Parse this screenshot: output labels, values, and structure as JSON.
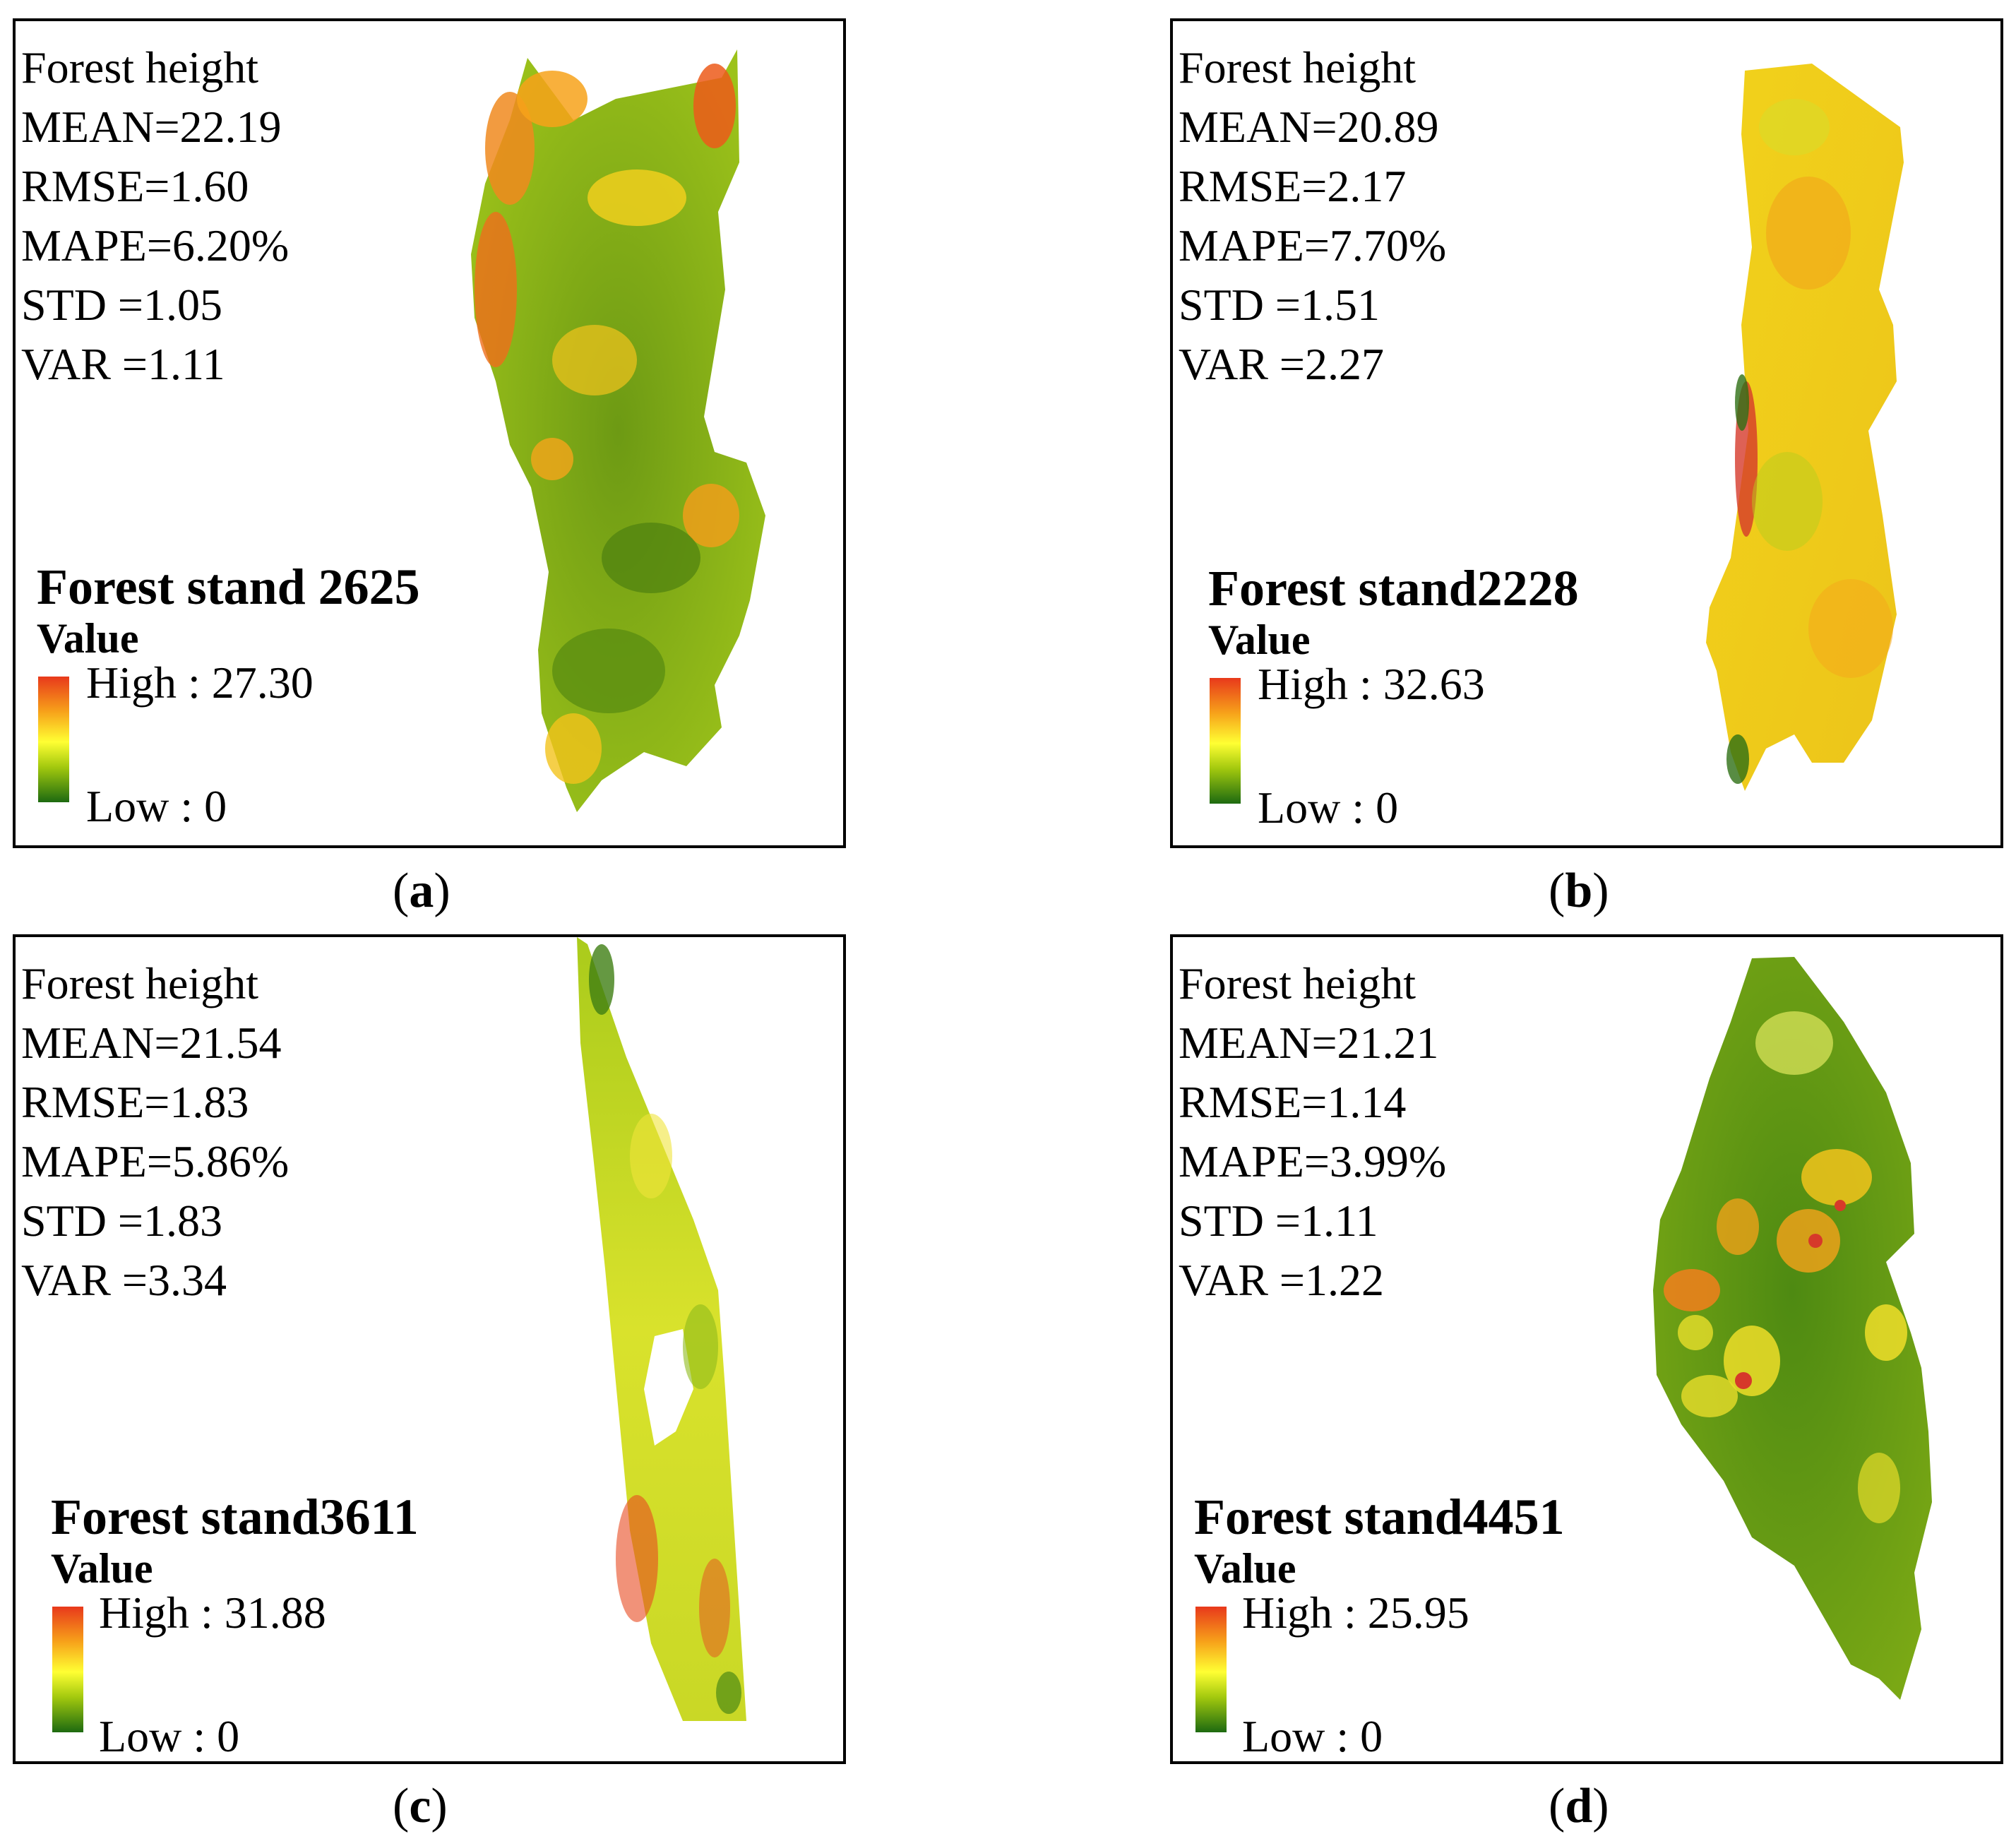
{
  "figure": {
    "panels": [
      {
        "id": "a",
        "caption_open": "(",
        "caption_letter": "a",
        "caption_close": ")",
        "map_title": "Forest height",
        "stats": [
          "MEAN=22.19",
          "RMSE=1.60",
          "MAPE=6.20%",
          "STD =1.05",
          "VAR =1.11"
        ],
        "stand_label": "Forest stand 2625",
        "legend_title": "Value",
        "legend_high": "High : 27.30",
        "legend_low": "Low : 0"
      },
      {
        "id": "b",
        "caption_open": "(",
        "caption_letter": "b",
        "caption_close": ")",
        "map_title": "Forest height",
        "stats": [
          "MEAN=20.89",
          "RMSE=2.17",
          "MAPE=7.70%",
          "STD =1.51",
          "VAR =2.27"
        ],
        "stand_label": "Forest stand2228",
        "legend_title": "Value",
        "legend_high": "High : 32.63",
        "legend_low": "Low : 0"
      },
      {
        "id": "c",
        "caption_open": "(",
        "caption_letter": "c",
        "caption_close": ")",
        "map_title": "Forest height",
        "stats": [
          "MEAN=21.54",
          "RMSE=1.83",
          "MAPE=5.86%",
          "STD =1.83",
          "VAR =3.34"
        ],
        "stand_label": "Forest stand3611",
        "legend_title": "Value",
        "legend_high": "High : 31.88",
        "legend_low": "Low : 0"
      },
      {
        "id": "d",
        "caption_open": "(",
        "caption_letter": "d",
        "caption_close": ")",
        "map_title": "Forest height",
        "stats": [
          "MEAN=21.21",
          "RMSE=1.14",
          "MAPE=3.99%",
          "STD =1.11",
          "VAR =1.22"
        ],
        "stand_label": "Forest stand4451",
        "legend_title": "Value",
        "legend_high": "High : 25.95",
        "legend_low": "Low : 0"
      }
    ],
    "colors": {
      "ramp_high": "#e8391b",
      "ramp_orange": "#f7a21a",
      "ramp_mid": "#ffff33",
      "ramp_light_green": "#a3c90e",
      "ramp_low": "#1d6a10"
    }
  }
}
